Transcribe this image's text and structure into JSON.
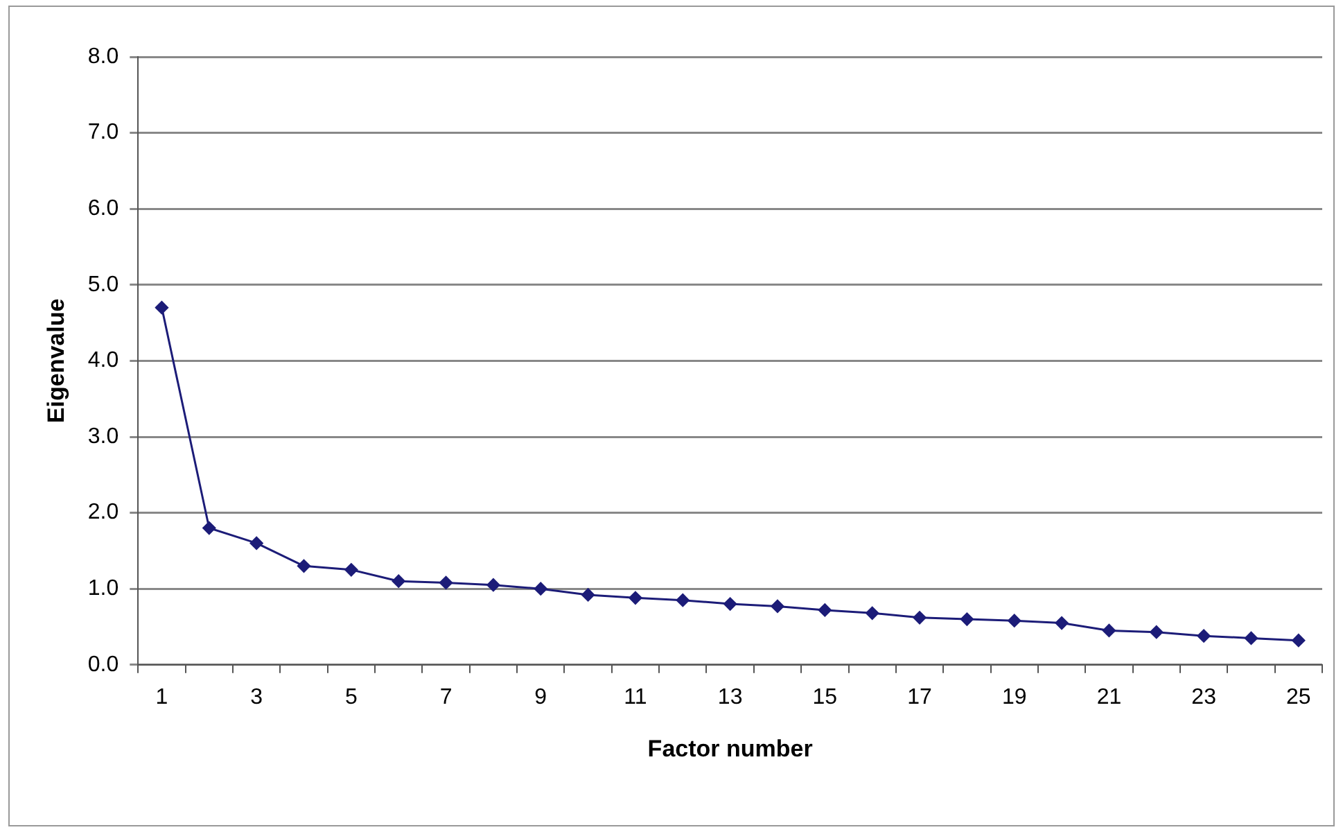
{
  "chart_data": {
    "type": "line",
    "xlabel": "Factor number",
    "ylabel": "Eigenvalue",
    "x": [
      1,
      2,
      3,
      4,
      5,
      6,
      7,
      8,
      9,
      10,
      11,
      12,
      13,
      14,
      15,
      16,
      17,
      18,
      19,
      20,
      21,
      22,
      23,
      24,
      25
    ],
    "series": [
      {
        "color": "#1c1c78",
        "values": [
          4.7,
          1.8,
          1.6,
          1.3,
          1.25,
          1.1,
          1.08,
          1.05,
          1.0,
          0.92,
          0.88,
          0.85,
          0.8,
          0.77,
          0.72,
          0.68,
          0.62,
          0.6,
          0.58,
          0.55,
          0.45,
          0.43,
          0.38,
          0.35,
          0.32
        ]
      }
    ],
    "xlim": [
      0.5,
      25.5
    ],
    "xticks": [
      {
        "value": 0.5,
        "label": null
      },
      1,
      {
        "value": 1.5,
        "label": null
      },
      {
        "value": 2.5,
        "label": null
      },
      3,
      {
        "value": 3.5,
        "label": null
      },
      {
        "value": 4.5,
        "label": null
      },
      5,
      {
        "value": 5.5,
        "label": null
      },
      {
        "value": 6.5,
        "label": null
      },
      7,
      {
        "value": 7.5,
        "label": null
      },
      {
        "value": 8.5,
        "label": null
      },
      9,
      {
        "value": 9.5,
        "label": null
      },
      {
        "value": 10.5,
        "label": null
      },
      11,
      {
        "value": 11.5,
        "label": null
      },
      {
        "value": 12.5,
        "label": null
      },
      13,
      {
        "value": 13.5,
        "label": null
      },
      {
        "value": 14.5,
        "label": null
      },
      15,
      {
        "value": 15.5,
        "label": null
      },
      {
        "value": 16.5,
        "label": null
      },
      17,
      {
        "value": 17.5,
        "label": null
      },
      {
        "value": 18.5,
        "label": null
      },
      19,
      {
        "value": 19.5,
        "label": null
      },
      {
        "value": 20.5,
        "label": null
      },
      21,
      {
        "value": 21.5,
        "label": null
      },
      {
        "value": 22.5,
        "label": null
      },
      23,
      {
        "value": 23.5,
        "label": null
      },
      {
        "value": 24.5,
        "label": null
      },
      25,
      {
        "value": 25.5,
        "label": null
      }
    ],
    "ylim": [
      0,
      8
    ],
    "yticks": [
      {
        "value": 0,
        "label": "0.0"
      },
      {
        "value": 1,
        "label": "1.0"
      },
      {
        "value": 2,
        "label": "2.0"
      },
      {
        "value": 3,
        "label": "3.0"
      },
      {
        "value": 4,
        "label": "4.0"
      },
      {
        "value": 5,
        "label": "5.0"
      },
      {
        "value": 6,
        "label": "6.0"
      },
      {
        "value": 7,
        "label": "7.0"
      },
      {
        "value": 8,
        "label": "8.0"
      }
    ],
    "grid": "y",
    "legend": false,
    "marker": "diamond",
    "line_style": "solid"
  }
}
